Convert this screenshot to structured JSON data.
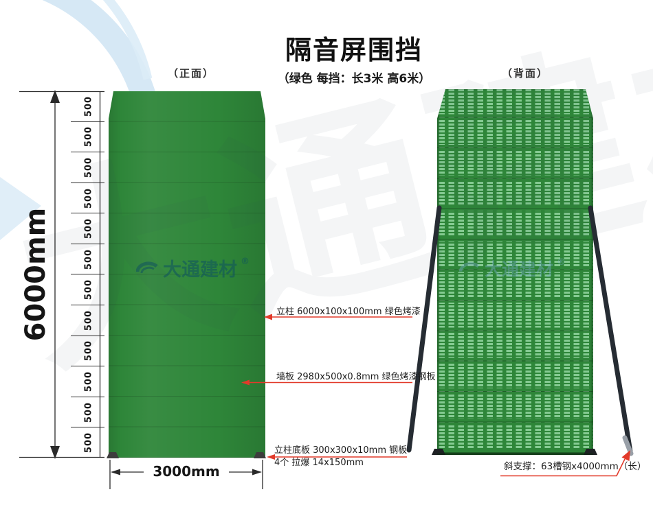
{
  "header": {
    "title": "隔音屏围挡",
    "subtitle": "（绿色  每挡：长3米 高6米）"
  },
  "views": {
    "front_label": "（正面）",
    "back_label": "（背面）"
  },
  "dimensions": {
    "total_height": "6000mm",
    "total_width": "3000mm",
    "segment_label": "500",
    "segment_count": 12
  },
  "annotations": {
    "post": "立柱 6000x100x100mm 绿色烤漆",
    "wall_panel": "墙板 2980x500x0.8mm 绿色烤漆钢板",
    "base_plate_line1": "立柱底板 300x300x10mm 钢板",
    "base_plate_line2": "4个 拉爆 14x150mm",
    "diagonal_brace": "斜支撑：63槽钢x4000mm（长）"
  },
  "watermark": {
    "brand": "大通建材",
    "registered": "®"
  },
  "colors": {
    "panel_green": "#2e8639",
    "slot_green": "#85cb92",
    "annotation_red": "#e23a2a",
    "support_dark": "#262c33",
    "line_black": "#2a2a2a"
  }
}
